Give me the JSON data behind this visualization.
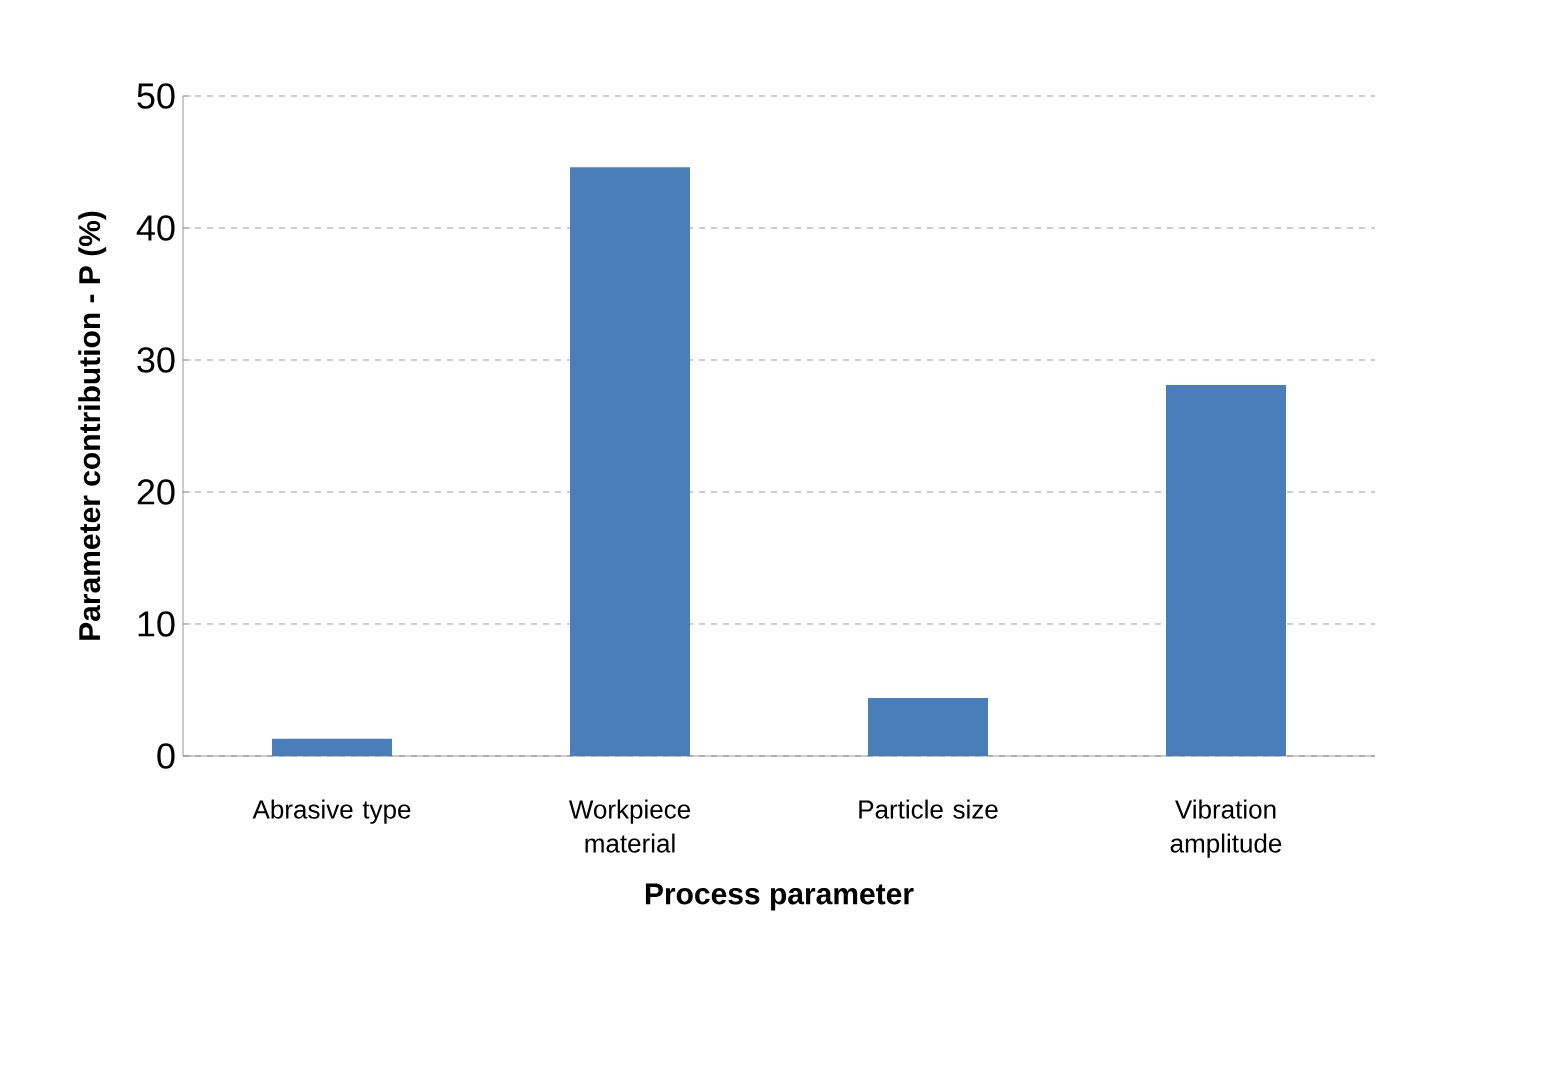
{
  "chart_data": {
    "type": "bar",
    "xlabel": "Process parameter",
    "ylabel": "Parameter contribution - P (%)",
    "categories": [
      "Abrasive type",
      "Workpiece material",
      "Particle size",
      "Vibration amplitude"
    ],
    "values": [
      1.3,
      44.6,
      4.4,
      28.1
    ],
    "color": "#4a7ebb",
    "ylim": [
      0,
      50
    ],
    "yticks": [
      0,
      10,
      20,
      30,
      40,
      50
    ],
    "grid": "y"
  }
}
